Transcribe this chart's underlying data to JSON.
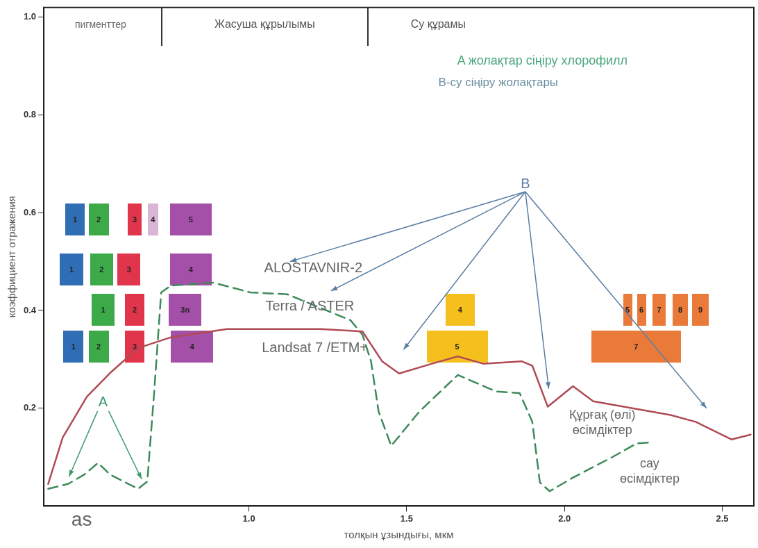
{
  "chart_data": {
    "type": "line",
    "xlabel": "толқын ұзындығы, мкм",
    "ylabel": "коэффициент отражения",
    "xlim": [
      0.35,
      2.6
    ],
    "ylim": [
      0,
      1.02
    ],
    "xticks": [
      {
        "value": 1.0,
        "label": "1.0"
      },
      {
        "value": 1.5,
        "label": "1.5"
      },
      {
        "value": 2.0,
        "label": "2.0"
      },
      {
        "value": 2.5,
        "label": "2.5"
      }
    ],
    "yticks": [
      {
        "value": 0.2,
        "label": "0.2"
      },
      {
        "value": 0.4,
        "label": "0.4"
      },
      {
        "value": 0.6,
        "label": "0.6"
      },
      {
        "value": 0.8,
        "label": "0.8"
      },
      {
        "value": 1.0,
        "label": "1.0"
      }
    ],
    "grid": false,
    "legend": false,
    "marker": "none",
    "series": [
      {
        "name": "Құрғақ (өлі) өсімдіктер",
        "color": "#b04a55",
        "line_style": "solid",
        "x": [
          0.364,
          0.41,
          0.487,
          0.56,
          0.649,
          0.753,
          0.931,
          1.078,
          1.227,
          1.36,
          1.422,
          1.476,
          1.58,
          1.662,
          1.742,
          1.864,
          1.898,
          1.947,
          2.027,
          2.091,
          2.336,
          2.416,
          2.529,
          2.59
        ],
        "values": [
          0.045,
          0.14,
          0.224,
          0.272,
          0.323,
          0.345,
          0.362,
          0.362,
          0.362,
          0.357,
          0.296,
          0.271,
          0.291,
          0.306,
          0.291,
          0.296,
          0.287,
          0.203,
          0.245,
          0.214,
          0.186,
          0.172,
          0.136,
          0.146
        ]
      },
      {
        "name": "сау өсімдіктер",
        "color": "#3d8a5a",
        "line_style": "dashed",
        "x": [
          0.364,
          0.427,
          0.478,
          0.522,
          0.56,
          0.649,
          0.678,
          0.7,
          0.722,
          0.753,
          0.887,
          1.004,
          1.122,
          1.322,
          1.36,
          1.387,
          1.411,
          1.451,
          1.54,
          1.662,
          1.784,
          1.858,
          1.898,
          1.922,
          1.953,
          2.027,
          2.149,
          2.229,
          2.278
        ],
        "values": [
          0.035,
          0.045,
          0.064,
          0.088,
          0.064,
          0.035,
          0.05,
          0.234,
          0.437,
          0.451,
          0.457,
          0.437,
          0.433,
          0.38,
          0.35,
          0.296,
          0.193,
          0.123,
          0.193,
          0.268,
          0.234,
          0.231,
          0.172,
          0.048,
          0.03,
          0.058,
          0.099,
          0.128,
          0.13
        ]
      }
    ],
    "annotations": [
      "A жолақтар сіңіру хлорофилл",
      "В-су сіңіру жолақтары",
      "as",
      "пигменттер",
      "Жасуша құрылымы",
      "Су құрамы",
      "A",
      "B",
      "ALOSTAVNIR-2",
      "Terra / ASTER",
      "Landsat 7 /ETM+",
      "1",
      "2",
      "3",
      "4",
      "5",
      "1",
      "2",
      "3",
      "4",
      "1",
      "2",
      "3n",
      "1",
      "2",
      "3",
      "4",
      "4",
      "5",
      "5",
      "6",
      "7",
      "8",
      "9",
      "7"
    ]
  }
}
